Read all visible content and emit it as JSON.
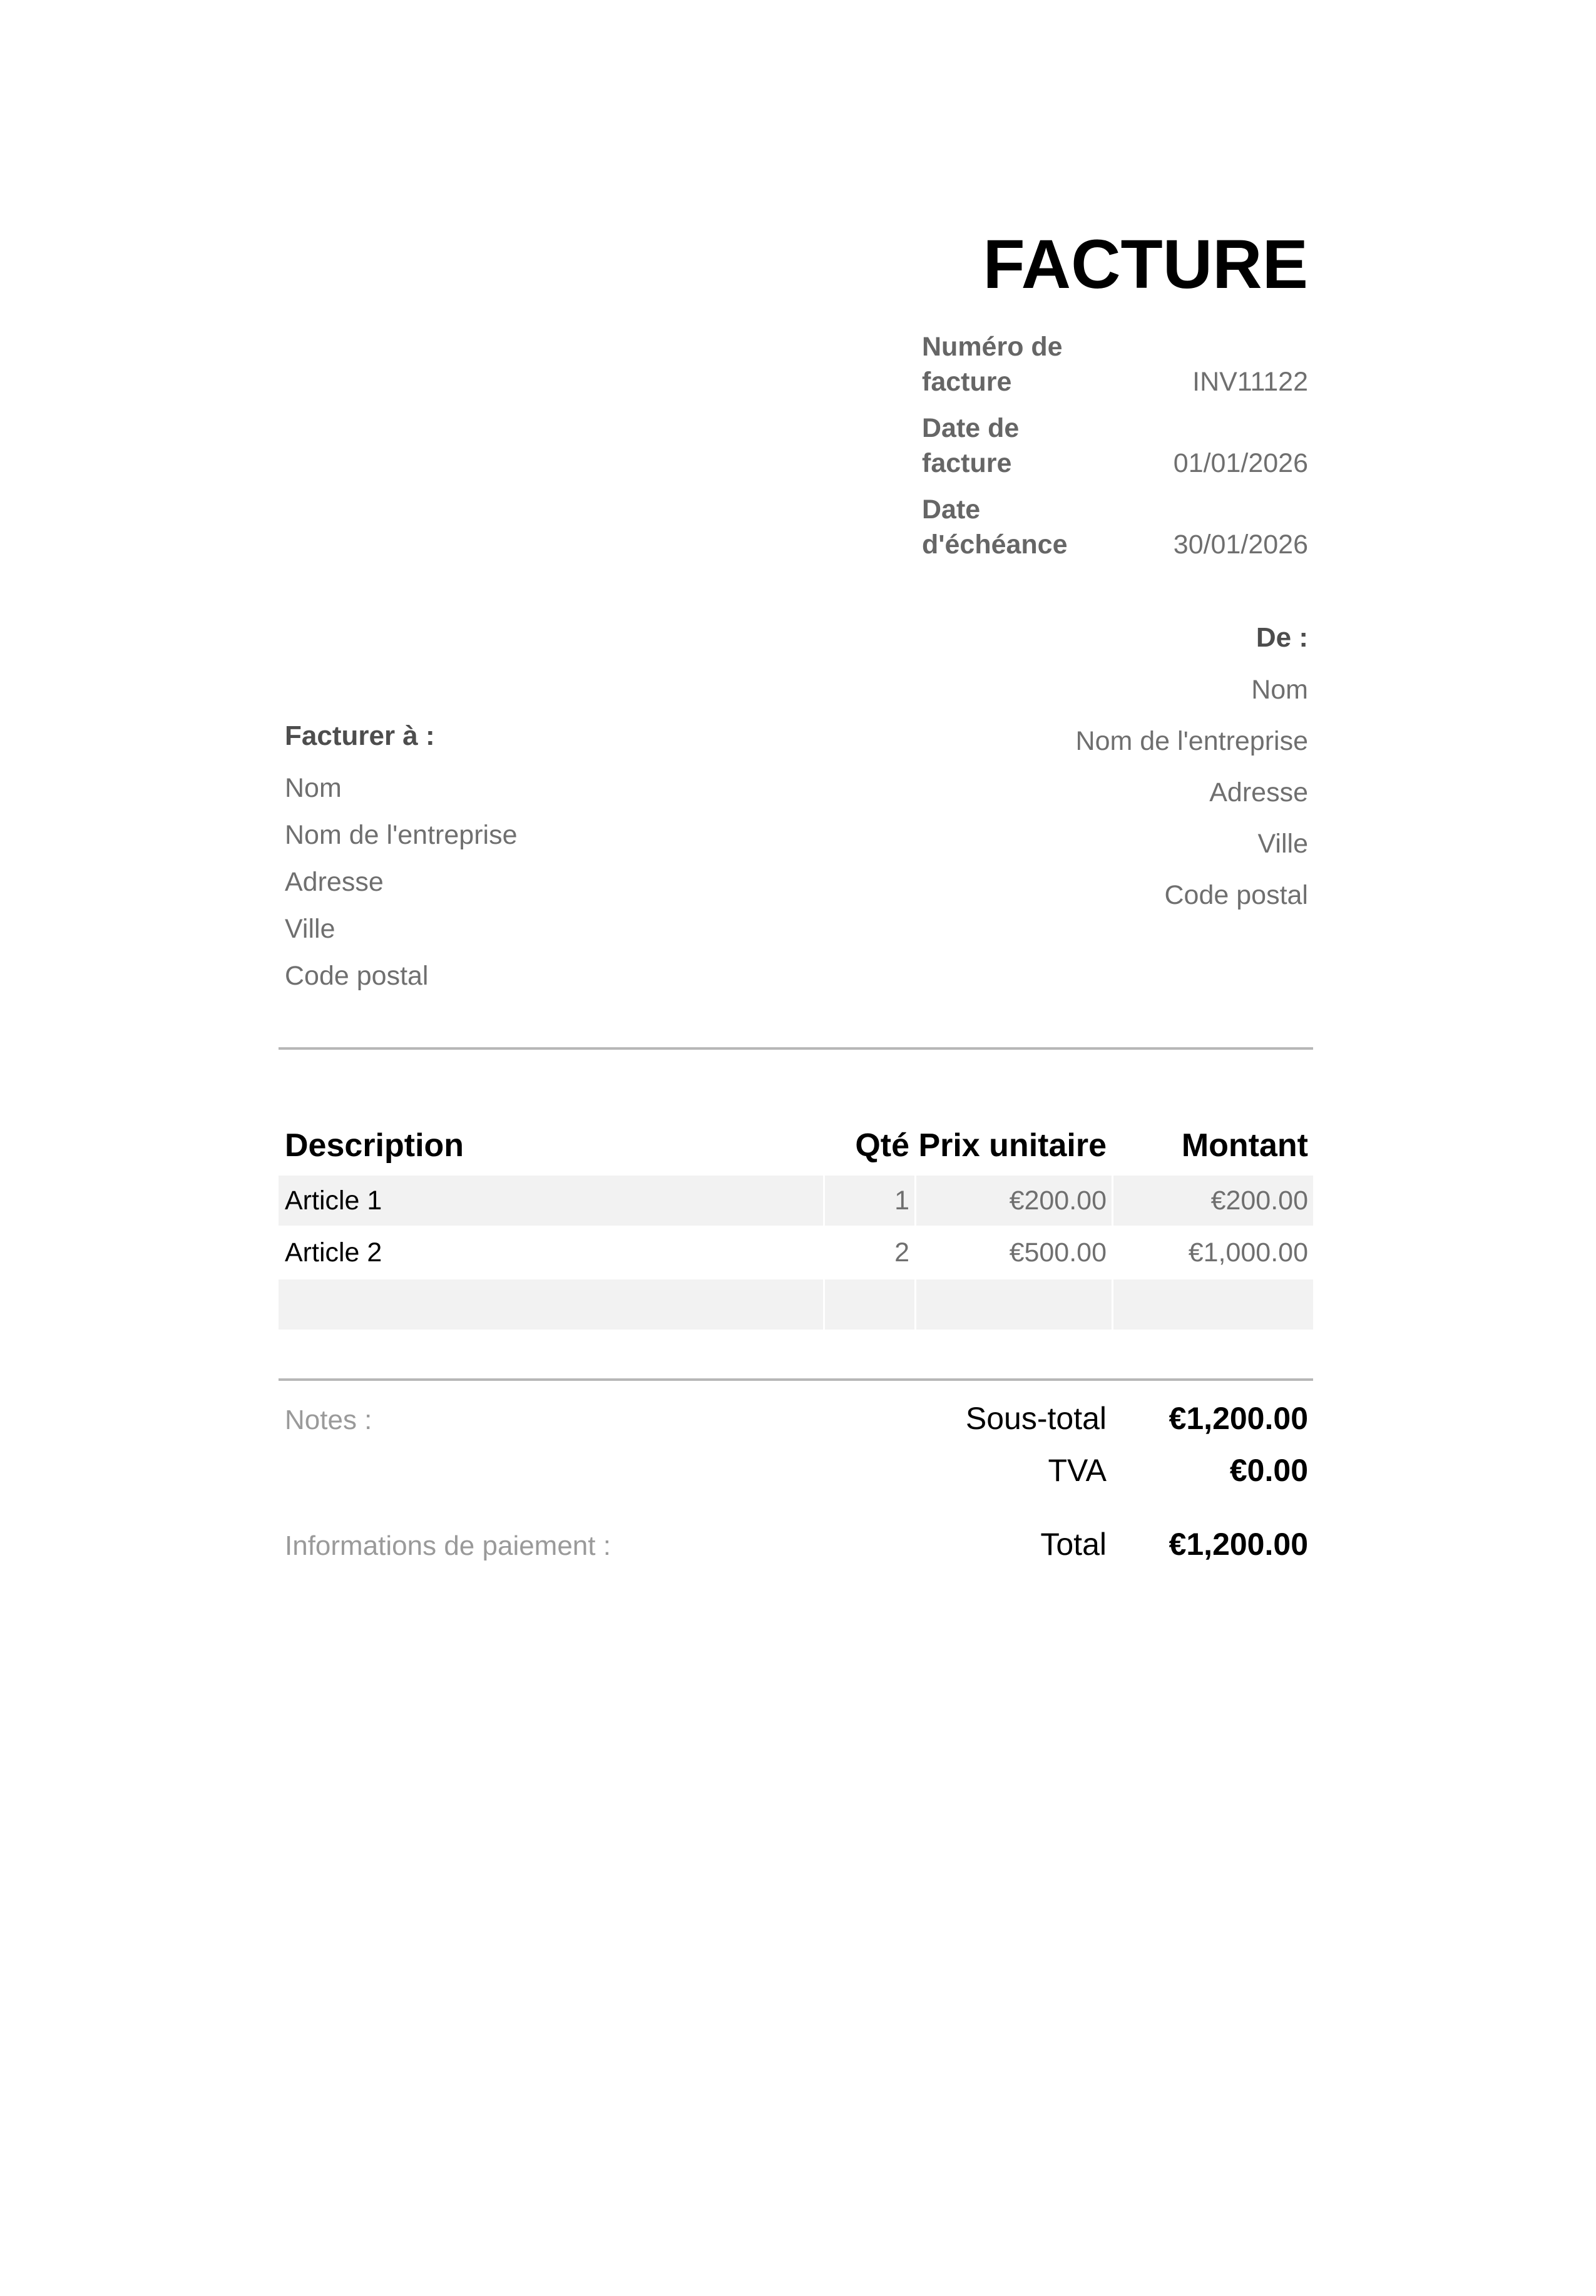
{
  "invoice": {
    "title": "FACTURE",
    "meta": [
      {
        "label": "Numéro de facture",
        "value": "INV11122"
      },
      {
        "label": "Date de facture",
        "value": "01/01/2026"
      },
      {
        "label": "Date d'échéance",
        "value": "30/01/2026"
      }
    ],
    "from": {
      "heading": "De :",
      "lines": [
        "Nom",
        "Nom de l'entreprise",
        "Adresse",
        "Ville",
        "Code postal"
      ]
    },
    "bill_to": {
      "heading": "Facturer à :",
      "lines": [
        "Nom",
        "Nom de l'entreprise",
        "Adresse",
        "Ville",
        "Code postal"
      ]
    },
    "items_table": {
      "headers": [
        "Description",
        "Qté",
        "Prix unitaire",
        "Montant"
      ],
      "rows": [
        [
          "Article 1",
          "1",
          "€200.00",
          "€200.00"
        ],
        [
          "Article 2",
          "2",
          "€500.00",
          "€1,000.00"
        ],
        [
          "",
          "",
          "",
          ""
        ]
      ]
    },
    "notes_label": "Notes :",
    "payment_info_label": "Informations de paiement :",
    "totals": [
      {
        "label": "Sous-total",
        "value": "€1,200.00"
      },
      {
        "label": "TVA",
        "value": "€0.00"
      },
      {
        "label": "Total",
        "value": "€1,200.00"
      }
    ],
    "colors": {
      "text_black": "#000000",
      "label_gray": "#666666",
      "heading_gray": "#4d4d4d",
      "body_gray": "#6f6f6f",
      "muted_gray": "#9a9a9a",
      "row_stripe": "#f2f2f2",
      "divider": "#b7b7b7"
    }
  }
}
